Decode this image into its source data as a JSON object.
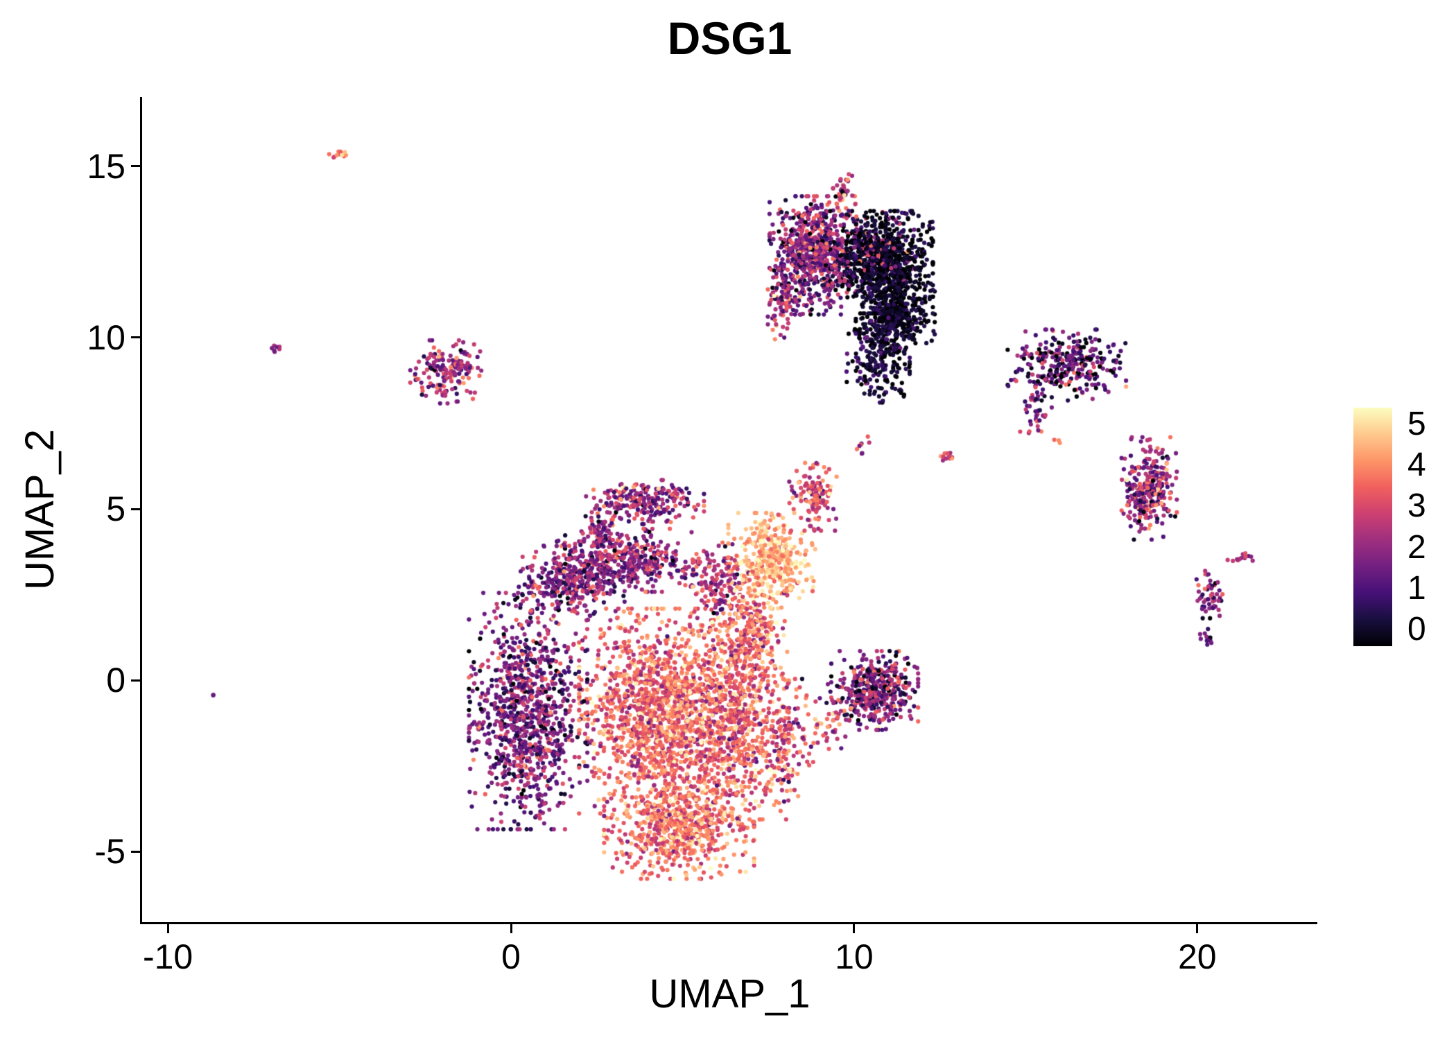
{
  "chart_data": {
    "type": "scatter",
    "title": "DSG1",
    "xlabel": "UMAP_1",
    "ylabel": "UMAP_2",
    "xlim": [
      -10.75,
      23.5
    ],
    "ylim": [
      -7.06,
      17.02
    ],
    "x_ticks": [
      "-10",
      "0",
      "10",
      "20"
    ],
    "x_tick_values": [
      -10,
      0,
      10,
      20
    ],
    "y_ticks": [
      "-5",
      "0",
      "5",
      "10",
      "15"
    ],
    "y_tick_values": [
      -5,
      0,
      5,
      10,
      15
    ],
    "grid": false,
    "legend_position": "right",
    "background_color": "#ffffff",
    "axis_color": "#000000",
    "point_radius_px": 3.1,
    "seed": 7,
    "legend": {
      "ticks": [
        0,
        1,
        2,
        3,
        4,
        5
      ],
      "value_min": 0,
      "value_max": 5,
      "colormap": "magma",
      "colors": [
        "#000004",
        "#180f3e",
        "#451077",
        "#721f81",
        "#9f2f7f",
        "#cd4071",
        "#f1605d",
        "#fd9567",
        "#fec98d",
        "#fcfdbf"
      ]
    },
    "cluster_fields": [
      "cx",
      "cy",
      "sd_x",
      "sd_y",
      "n_points",
      "expr_mean",
      "expr_sd"
    ],
    "clusters": [
      [
        0.5,
        -0.9,
        0.75,
        1.5,
        1000,
        1.7,
        0.85
      ],
      [
        1.7,
        2.9,
        0.7,
        0.5,
        320,
        1.9,
        0.8
      ],
      [
        3.4,
        3.5,
        0.9,
        0.4,
        380,
        2.0,
        0.9
      ],
      [
        3.9,
        5.2,
        0.75,
        0.28,
        230,
        2.2,
        0.9
      ],
      [
        2.6,
        4.4,
        0.3,
        0.3,
        60,
        2.0,
        0.8
      ],
      [
        4.4,
        -0.9,
        1.05,
        1.3,
        1500,
        3.4,
        0.7
      ],
      [
        4.9,
        -4.3,
        0.95,
        0.65,
        650,
        3.5,
        0.7
      ],
      [
        6.6,
        -1.3,
        0.65,
        1.2,
        600,
        3.3,
        0.8
      ],
      [
        8.0,
        -1.8,
        0.3,
        0.8,
        120,
        2.9,
        0.9
      ],
      [
        7.6,
        3.5,
        0.55,
        0.6,
        420,
        4.2,
        0.5
      ],
      [
        6.9,
        1.4,
        0.5,
        0.7,
        280,
        3.4,
        0.8
      ],
      [
        6.0,
        2.9,
        0.4,
        0.5,
        150,
        2.6,
        0.9
      ],
      [
        8.8,
        5.4,
        0.3,
        0.45,
        130,
        3.0,
        0.8
      ],
      [
        10.6,
        -0.3,
        0.55,
        0.5,
        430,
        1.8,
        1.0
      ],
      [
        9.2,
        -1.2,
        0.45,
        0.6,
        60,
        2.6,
        0.9
      ],
      [
        8.8,
        12.4,
        0.55,
        0.75,
        650,
        1.8,
        0.9
      ],
      [
        10.8,
        12.2,
        0.65,
        0.65,
        950,
        0.3,
        0.4
      ],
      [
        11.2,
        10.6,
        0.5,
        0.45,
        300,
        0.25,
        0.35
      ],
      [
        10.7,
        9.6,
        0.4,
        0.65,
        260,
        0.5,
        0.5
      ],
      [
        7.9,
        11.1,
        0.18,
        0.5,
        80,
        2.3,
        1.0
      ],
      [
        9.7,
        14.1,
        0.15,
        0.3,
        45,
        2.4,
        1.0
      ],
      [
        10.6,
        12.6,
        0.5,
        0.5,
        80,
        2.5,
        1.0
      ],
      [
        8.7,
        13.4,
        0.3,
        0.3,
        30,
        3.0,
        0.7
      ],
      [
        16.2,
        9.2,
        0.75,
        0.45,
        300,
        1.2,
        1.1
      ],
      [
        15.3,
        7.8,
        0.2,
        0.4,
        40,
        1.8,
        0.9
      ],
      [
        15.9,
        7.0,
        0.08,
        0.08,
        3,
        3.5,
        0.3
      ],
      [
        18.6,
        5.6,
        0.35,
        0.65,
        280,
        2.2,
        1.0
      ],
      [
        20.4,
        2.5,
        0.2,
        0.3,
        55,
        1.8,
        0.8
      ],
      [
        21.3,
        3.55,
        0.18,
        0.07,
        14,
        2.2,
        0.5
      ],
      [
        20.3,
        1.25,
        0.1,
        0.15,
        12,
        1.6,
        0.7
      ],
      [
        12.75,
        6.5,
        0.15,
        0.08,
        12,
        2.9,
        0.7
      ],
      [
        10.2,
        6.85,
        0.12,
        0.2,
        8,
        2.2,
        0.8
      ],
      [
        -1.9,
        9.0,
        0.45,
        0.4,
        170,
        2.2,
        0.9
      ],
      [
        -5.0,
        15.4,
        0.13,
        0.09,
        12,
        3.2,
        0.7
      ],
      [
        -6.85,
        9.7,
        0.1,
        0.06,
        8,
        2.2,
        0.5
      ],
      [
        -8.7,
        -0.45,
        0.03,
        0.03,
        2,
        1.4,
        0.2
      ]
    ]
  }
}
